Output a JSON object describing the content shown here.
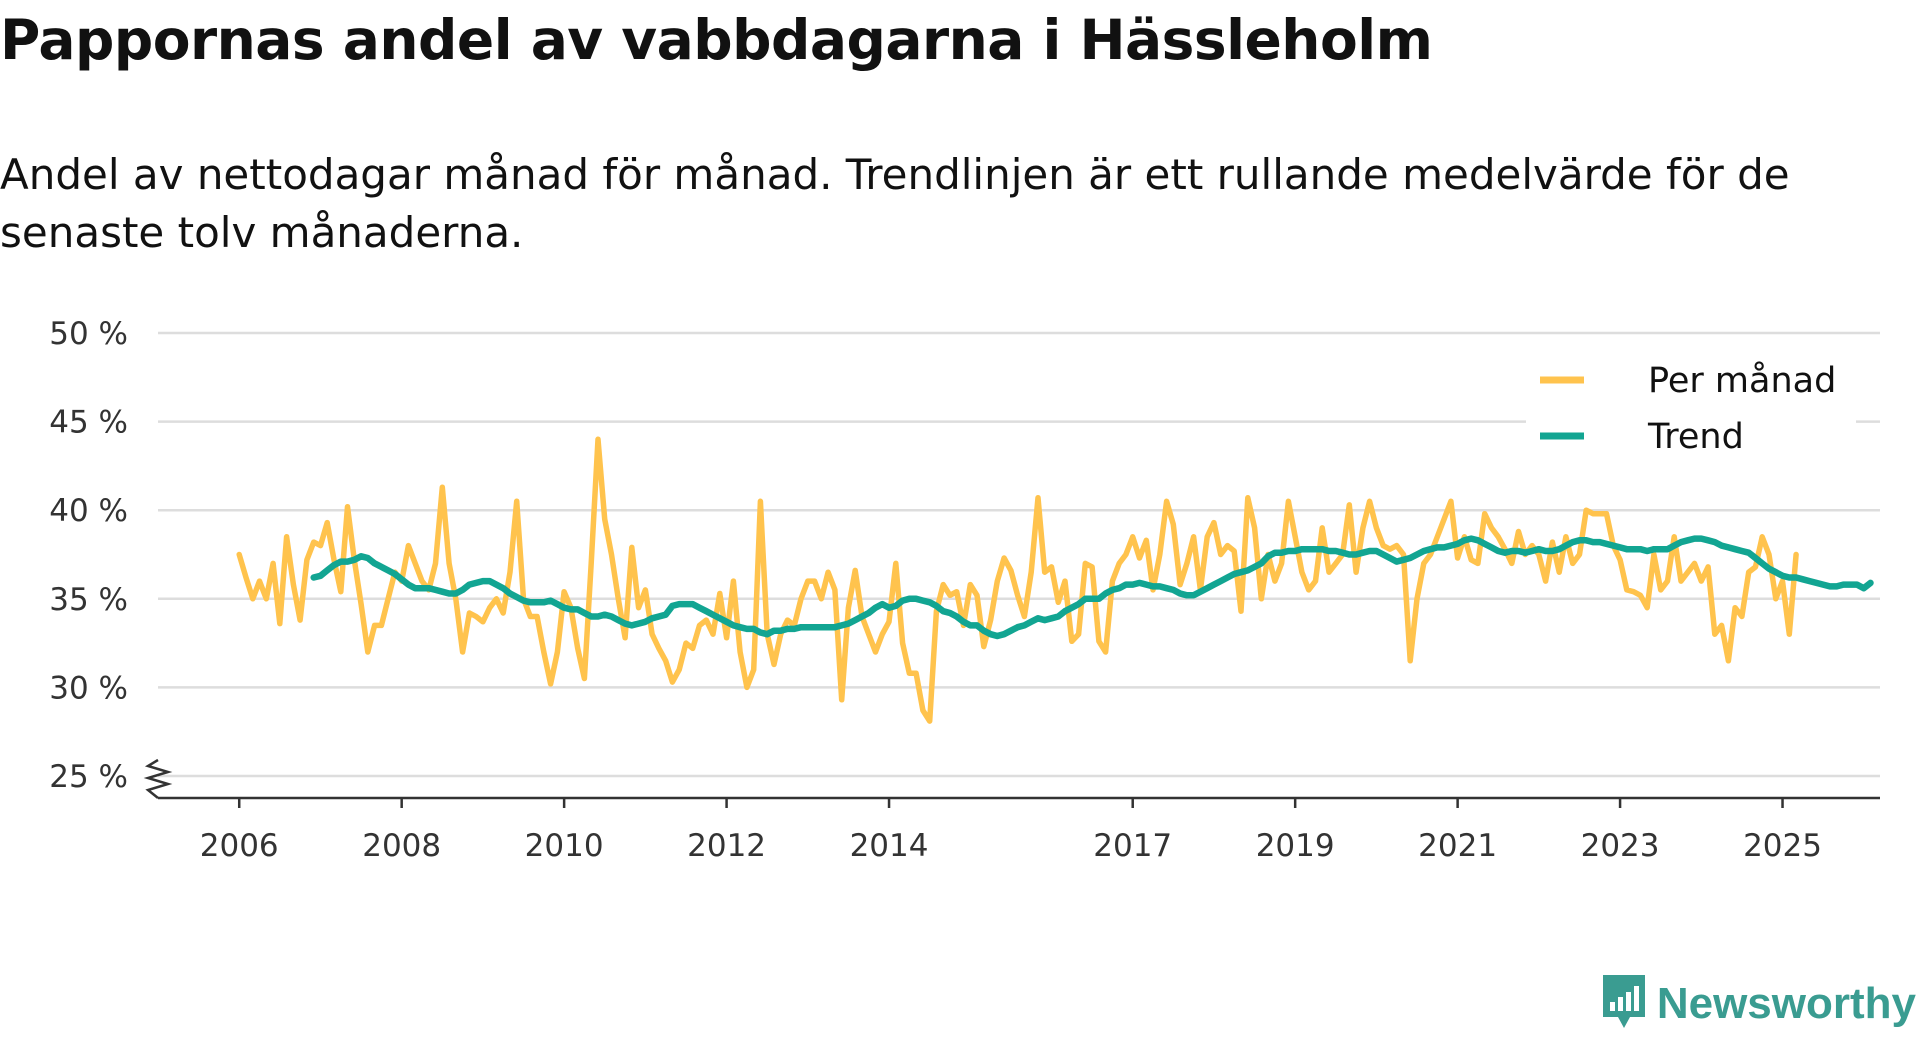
{
  "title": "Pappornas andel av vabbdagarna i Hässleholm",
  "subtitle": "Andel av nettodagar månad för månad. Trendlinjen är ett rullande medelvärde för de senaste tolv månaderna.",
  "brand": {
    "name": "Newsworthy",
    "icon": "newsworthy-logo-icon"
  },
  "colors": {
    "monthly": "#ffc34d",
    "trend": "#12a592",
    "grid": "#dddddd",
    "axis": "#333333",
    "brand": "#3a9c91"
  },
  "chart_data": {
    "type": "line",
    "title": "Pappornas andel av vabbdagarna i Hässleholm",
    "xlabel": "",
    "ylabel": "",
    "ylim": [
      25,
      50
    ],
    "xlim": [
      2005.0,
      2026.2
    ],
    "y_axis_break": true,
    "grid": true,
    "legend_position": "top-right",
    "y_ticks": [
      {
        "value": 25,
        "label": "25 %"
      },
      {
        "value": 30,
        "label": "30 %"
      },
      {
        "value": 35,
        "label": "35 %"
      },
      {
        "value": 40,
        "label": "40 %"
      },
      {
        "value": 45,
        "label": "45 %"
      },
      {
        "value": 50,
        "label": "50 %"
      }
    ],
    "x_ticks": [
      {
        "value": 2006.0,
        "label": "2006"
      },
      {
        "value": 2008.0,
        "label": "2008"
      },
      {
        "value": 2010.0,
        "label": "2010"
      },
      {
        "value": 2012.0,
        "label": "2012"
      },
      {
        "value": 2014.0,
        "label": "2014"
      },
      {
        "value": 2017.0,
        "label": "2017"
      },
      {
        "value": 2019.0,
        "label": "2019"
      },
      {
        "value": 2021.0,
        "label": "2021"
      },
      {
        "value": 2023.0,
        "label": "2023"
      },
      {
        "value": 2025.0,
        "label": "2025"
      }
    ],
    "series": [
      {
        "name": "Per månad",
        "start": 2006.0,
        "step": 0.0833333,
        "values": [
          37.5,
          36.2,
          35.0,
          36.0,
          35.0,
          37.0,
          33.6,
          38.5,
          35.8,
          33.8,
          37.2,
          38.2,
          38.0,
          39.3,
          37.2,
          35.4,
          40.2,
          37.2,
          34.7,
          32.0,
          33.5,
          33.5,
          35.0,
          36.5,
          36.0,
          38.0,
          37.0,
          36.0,
          35.5,
          37.0,
          41.3,
          37.0,
          35.0,
          32.0,
          34.2,
          34.0,
          33.7,
          34.5,
          35.0,
          34.2,
          36.5,
          40.5,
          35.0,
          34.0,
          34.0,
          32.0,
          30.2,
          32.0,
          35.4,
          34.5,
          32.2,
          30.5,
          37.0,
          44.0,
          39.5,
          37.5,
          35.0,
          32.8,
          37.9,
          34.5,
          35.5,
          33.0,
          32.2,
          31.5,
          30.3,
          31.0,
          32.5,
          32.2,
          33.5,
          33.8,
          33.0,
          35.3,
          32.8,
          36.0,
          32.0,
          30.0,
          31.0,
          40.5,
          33.0,
          31.3,
          33.0,
          33.8,
          33.5,
          35.0,
          36.0,
          36.0,
          35.0,
          36.5,
          35.5,
          29.3,
          34.5,
          36.6,
          34.0,
          33.0,
          32.0,
          33.0,
          33.7,
          37.0,
          32.5,
          30.8,
          30.8,
          28.7,
          28.1,
          34.3,
          35.8,
          35.2,
          35.4,
          33.5,
          35.8,
          35.2,
          32.3,
          33.8,
          36.0,
          37.3,
          36.6,
          35.2,
          34.0,
          36.5,
          40.7,
          36.5,
          36.8,
          34.8,
          36.0,
          32.6,
          33.0,
          37.0,
          36.8,
          32.6,
          32.0,
          36.0,
          37.0,
          37.5,
          38.5,
          37.3,
          38.3,
          35.5,
          37.5,
          40.5,
          39.2,
          35.8,
          37.0,
          38.5,
          35.5,
          38.5,
          39.3,
          37.5,
          38.0,
          37.7,
          34.3,
          40.7,
          39.0,
          35.0,
          37.5,
          36.0,
          37.0,
          40.5,
          38.5,
          36.5,
          35.5,
          36.0,
          39.0,
          36.5,
          37.0,
          37.5,
          40.3,
          36.5,
          39.0,
          40.5,
          39.0,
          38.0,
          37.8,
          38.0,
          37.5,
          31.5,
          35.0,
          37.0,
          37.5,
          38.5,
          39.5,
          40.5,
          37.3,
          38.5,
          37.2,
          37.0,
          39.8,
          39.0,
          38.5,
          37.8,
          37.0,
          38.8,
          37.5,
          38.0,
          37.5,
          36.0,
          38.2,
          36.5,
          38.5,
          37.0,
          37.5,
          40.0,
          39.8,
          39.8,
          39.8,
          38.0,
          37.2,
          35.5,
          35.4,
          35.2,
          34.5,
          37.5,
          35.5,
          36.0,
          38.5,
          36.0,
          36.5,
          37.0,
          36.0,
          36.8,
          33.0,
          33.5,
          31.5,
          34.5,
          34.0,
          36.5,
          36.8,
          38.5,
          37.5,
          35.0,
          36.0,
          33.0,
          37.5
        ]
      },
      {
        "name": "Trend",
        "start": 2006.9166667,
        "step": 0.0833333,
        "values": [
          36.2,
          36.3,
          36.6,
          36.9,
          37.1,
          37.1,
          37.2,
          37.4,
          37.3,
          37.0,
          36.8,
          36.6,
          36.4,
          36.1,
          35.8,
          35.6,
          35.6,
          35.6,
          35.5,
          35.4,
          35.3,
          35.3,
          35.5,
          35.8,
          35.9,
          36.0,
          36.0,
          35.8,
          35.6,
          35.3,
          35.1,
          34.9,
          34.8,
          34.8,
          34.8,
          34.9,
          34.7,
          34.5,
          34.4,
          34.4,
          34.2,
          34.0,
          34.0,
          34.1,
          34.0,
          33.8,
          33.6,
          33.5,
          33.6,
          33.7,
          33.9,
          34.0,
          34.1,
          34.6,
          34.7,
          34.7,
          34.7,
          34.5,
          34.3,
          34.1,
          33.9,
          33.7,
          33.5,
          33.4,
          33.3,
          33.3,
          33.1,
          33.0,
          33.2,
          33.2,
          33.3,
          33.3,
          33.4,
          33.4,
          33.4,
          33.4,
          33.4,
          33.4,
          33.5,
          33.6,
          33.8,
          34.0,
          34.2,
          34.5,
          34.7,
          34.5,
          34.6,
          34.9,
          35.0,
          35.0,
          34.9,
          34.8,
          34.6,
          34.3,
          34.2,
          34.0,
          33.7,
          33.5,
          33.5,
          33.2,
          33.0,
          32.9,
          33.0,
          33.2,
          33.4,
          33.5,
          33.7,
          33.9,
          33.8,
          33.9,
          34.0,
          34.3,
          34.5,
          34.7,
          35.0,
          35.0,
          35.0,
          35.3,
          35.5,
          35.6,
          35.8,
          35.8,
          35.9,
          35.8,
          35.7,
          35.7,
          35.6,
          35.5,
          35.3,
          35.2,
          35.2,
          35.4,
          35.6,
          35.8,
          36.0,
          36.2,
          36.4,
          36.5,
          36.6,
          36.8,
          37.0,
          37.4,
          37.6,
          37.6,
          37.7,
          37.7,
          37.8,
          37.8,
          37.8,
          37.8,
          37.7,
          37.7,
          37.6,
          37.5,
          37.5,
          37.6,
          37.7,
          37.7,
          37.5,
          37.3,
          37.1,
          37.2,
          37.3,
          37.5,
          37.7,
          37.8,
          37.9,
          37.9,
          38.0,
          38.1,
          38.3,
          38.4,
          38.3,
          38.1,
          37.9,
          37.7,
          37.6,
          37.7,
          37.7,
          37.6,
          37.7,
          37.8,
          37.7,
          37.7,
          37.8,
          38.0,
          38.2,
          38.3,
          38.3,
          38.2,
          38.2,
          38.1,
          38.0,
          37.9,
          37.8,
          37.8,
          37.8,
          37.7,
          37.8,
          37.8,
          37.8,
          38.0,
          38.2,
          38.3,
          38.4,
          38.4,
          38.3,
          38.2,
          38.0,
          37.9,
          37.8,
          37.7,
          37.6,
          37.3,
          37.0,
          36.7,
          36.5,
          36.3,
          36.2,
          36.2,
          36.1,
          36.0,
          35.9,
          35.8,
          35.7,
          35.7,
          35.8,
          35.8,
          35.8,
          35.6,
          35.9
        ]
      }
    ]
  }
}
